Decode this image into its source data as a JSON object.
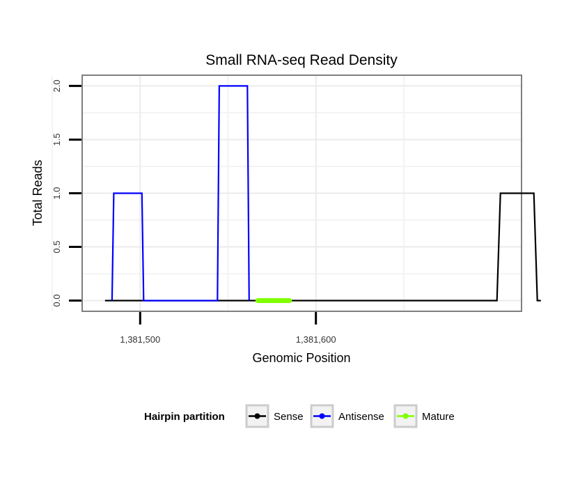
{
  "chart_data": {
    "type": "line",
    "title": "Small RNA-seq Read Density",
    "xlabel": "Genomic Position",
    "ylabel": "Total Reads",
    "xlim": [
      1381467,
      1381717
    ],
    "ylim": [
      -0.1,
      2.1
    ],
    "x_ticks": [
      1381500,
      1381600
    ],
    "x_tick_labels": [
      "1,381,500",
      "1,381,600"
    ],
    "y_ticks": [
      0.0,
      0.5,
      1.0,
      1.5,
      2.0
    ],
    "y_tick_labels": [
      "0.0",
      "0.5",
      "1.0",
      "1.5",
      "2.0"
    ],
    "grid": true,
    "legend": {
      "title": "Hairpin partition",
      "position": "bottom",
      "items": [
        "Sense",
        "Antisense",
        "Mature"
      ]
    },
    "series": [
      {
        "name": "Sense",
        "color": "#000000",
        "x": [
          1381480,
          1381703,
          1381705,
          1381724,
          1381726,
          1381728
        ],
        "y": [
          0,
          0,
          1,
          1,
          0,
          0
        ]
      },
      {
        "name": "Antisense",
        "color": "#0000ff",
        "x": [
          1381484,
          1381485,
          1381501,
          1381502,
          1381544,
          1381545,
          1381561,
          1381562
        ],
        "y": [
          0,
          1,
          1,
          0,
          0,
          2,
          2,
          0
        ]
      },
      {
        "name": "Mature",
        "color": "#7fff00",
        "x": [
          1381567,
          1381585
        ],
        "y": [
          0,
          0
        ]
      }
    ]
  }
}
